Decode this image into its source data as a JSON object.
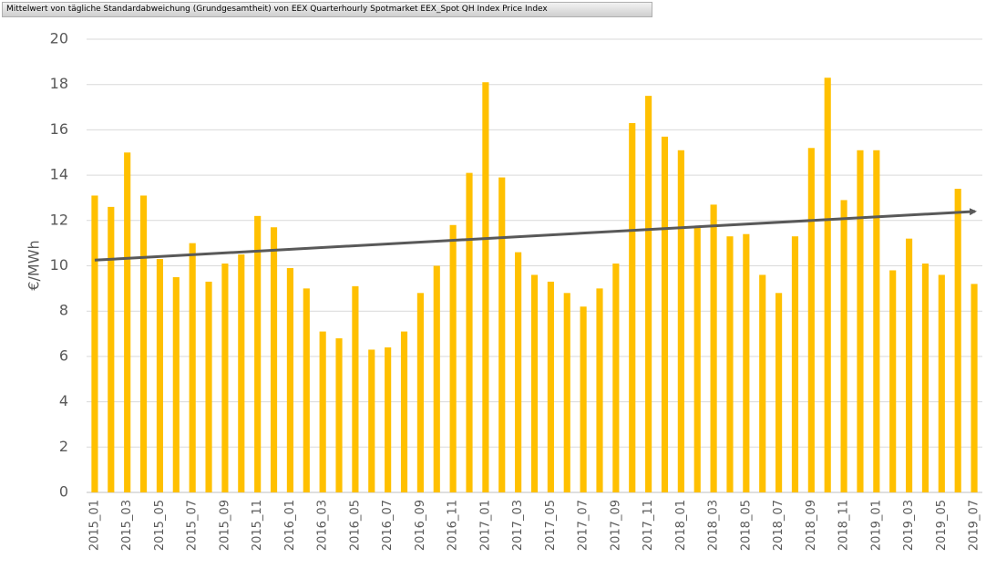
{
  "chart_data": {
    "type": "bar",
    "title": "Mittelwert von tägliche Standardabweichung (Grundgesamtheit) von EEX Quarterhourly Spotmarket EEX_Spot QH Index Price Index",
    "y_label": "€/MWh",
    "categories": [
      "2015_01",
      null,
      "2015_03",
      null,
      "2015_05",
      null,
      "2015_07",
      null,
      "2015_09",
      null,
      "2015_11",
      null,
      "2016_01",
      null,
      "2016_03",
      null,
      "2016_05",
      null,
      "2016_07",
      null,
      "2016_09",
      null,
      "2016_11",
      null,
      "2017_01",
      null,
      "2017_03",
      null,
      "2017_05",
      null,
      "2017_07",
      null,
      "2017_09",
      null,
      "2017_11",
      null,
      "2018_01",
      null,
      "2018_03",
      null,
      "2018_05",
      null,
      "2018_07",
      null,
      "2018_09",
      null,
      "2018_11",
      null,
      "2019_01",
      null,
      "2019_03",
      null,
      "2019_05",
      null,
      "2019_07"
    ],
    "values": [
      13.1,
      12.6,
      15.0,
      13.1,
      10.3,
      9.5,
      11.0,
      9.3,
      10.1,
      10.5,
      12.2,
      11.7,
      9.9,
      9.0,
      7.1,
      6.8,
      9.1,
      6.3,
      6.4,
      7.1,
      8.8,
      10.0,
      11.8,
      14.1,
      18.1,
      13.9,
      10.6,
      9.6,
      9.3,
      8.8,
      8.2,
      9.0,
      10.1,
      16.3,
      17.5,
      15.7,
      15.1,
      11.7,
      12.7,
      11.3,
      11.4,
      9.6,
      8.8,
      11.3,
      15.2,
      18.3,
      12.9,
      15.1,
      15.1,
      9.8,
      11.2,
      10.1,
      9.6,
      13.4,
      9.2
    ],
    "color": "#ffc000",
    "trend": {
      "start": 10.25,
      "end": 12.4,
      "color": "#595959"
    },
    "ylim": [
      0,
      20
    ],
    "yticks": [
      0,
      2,
      4,
      6,
      8,
      10,
      12,
      14,
      16,
      18,
      20
    ],
    "grid": true
  }
}
